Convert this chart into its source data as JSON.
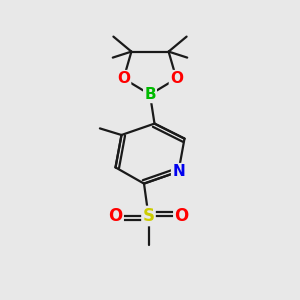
{
  "background_color": "#e8e8e8",
  "bond_color": "#1a1a1a",
  "bond_width": 1.6,
  "atom_colors": {
    "B": "#00bb00",
    "O": "#ff0000",
    "N": "#0000ee",
    "S": "#cccc00",
    "C": "#1a1a1a"
  },
  "figsize": [
    3.0,
    3.0
  ],
  "dpi": 100,
  "xlim": [
    0,
    10
  ],
  "ylim": [
    0,
    10
  ]
}
